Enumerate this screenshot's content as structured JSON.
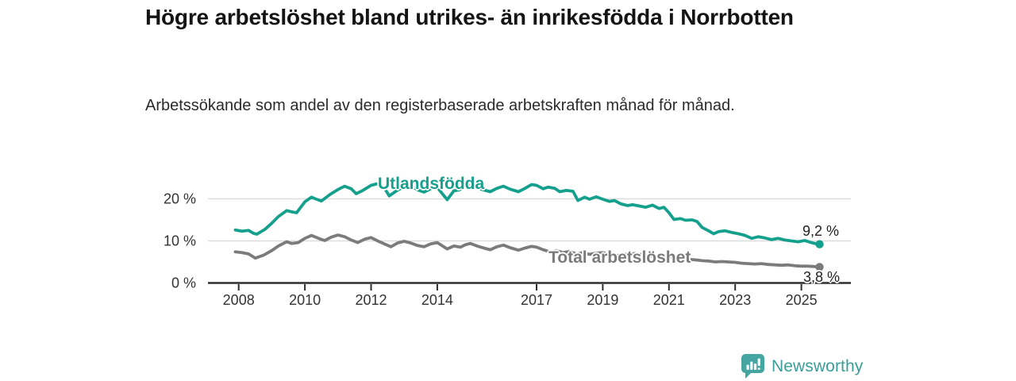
{
  "header": {
    "title": "Högre arbetslöshet bland utrikes- än inrikesfödda i Norrbotten",
    "subtitle": "Arbetssökande som andel av den registerbaserade arbetskraften månad för månad."
  },
  "colors": {
    "accent_teal": "#15a08e",
    "series_gray": "#7b7b7b",
    "gridline": "#dcdcdc",
    "axis": "#2e2e2e",
    "tick_text": "#333333",
    "logo_teal": "#45a5a0",
    "logo_text_teal": "#3a9e98"
  },
  "logo": {
    "text": "Newsworthy",
    "icon": "bar-chart-speech-bubble"
  },
  "chart_data": {
    "type": "line",
    "title": "Högre arbetslöshet bland utrikes- än inrikesfödda i Norrbotten",
    "subtitle": "Arbetssökande som andel av den registerbaserade arbetskraften månad för månad.",
    "xlabel": "",
    "ylabel": "",
    "grid": "horizontal",
    "legend_position": "inline-labels",
    "xlim": [
      2007.9,
      2025.8
    ],
    "ylim": [
      0,
      26
    ],
    "x_ticks": [
      {
        "value": 2008,
        "label": "2008"
      },
      {
        "value": 2010,
        "label": "2010"
      },
      {
        "value": 2012,
        "label": "2012"
      },
      {
        "value": 2014,
        "label": "2014"
      },
      {
        "value": 2017,
        "label": "2017"
      },
      {
        "value": 2019,
        "label": "2019"
      },
      {
        "value": 2021,
        "label": "2021"
      },
      {
        "value": 2023,
        "label": "2023"
      },
      {
        "value": 2025,
        "label": "2025"
      }
    ],
    "y_ticks": [
      {
        "value": 0,
        "label": "0 %"
      },
      {
        "value": 10,
        "label": "10 %"
      },
      {
        "value": 20,
        "label": "20 %"
      }
    ],
    "series": [
      {
        "name": "Utlandsfödda",
        "color": "#15a08e",
        "end_label": "9,2 %",
        "end_value": 9.2,
        "points": [
          [
            2007.9,
            12.6
          ],
          [
            2008.1,
            12.3
          ],
          [
            2008.3,
            12.5
          ],
          [
            2008.45,
            11.8
          ],
          [
            2008.55,
            11.6
          ],
          [
            2008.8,
            12.8
          ],
          [
            2009.0,
            14.2
          ],
          [
            2009.2,
            15.8
          ],
          [
            2009.45,
            17.2
          ],
          [
            2009.6,
            16.9
          ],
          [
            2009.75,
            16.7
          ],
          [
            2010.0,
            19.3
          ],
          [
            2010.2,
            20.4
          ],
          [
            2010.35,
            19.9
          ],
          [
            2010.5,
            19.5
          ],
          [
            2010.75,
            21.0
          ],
          [
            2011.0,
            22.2
          ],
          [
            2011.2,
            23.0
          ],
          [
            2011.4,
            22.4
          ],
          [
            2011.55,
            21.2
          ],
          [
            2011.75,
            22.0
          ],
          [
            2012.0,
            23.2
          ],
          [
            2012.2,
            23.6
          ],
          [
            2012.4,
            22.6
          ],
          [
            2012.55,
            20.7
          ],
          [
            2012.8,
            22.1
          ],
          [
            2013.0,
            22.8
          ],
          [
            2013.2,
            23.1
          ],
          [
            2013.45,
            22.0
          ],
          [
            2013.6,
            21.6
          ],
          [
            2013.8,
            22.4
          ],
          [
            2014.0,
            22.7
          ],
          [
            2014.3,
            19.8
          ],
          [
            2014.5,
            21.9
          ],
          [
            2014.65,
            22.1
          ],
          [
            2014.85,
            22.9
          ],
          [
            2015.0,
            23.2
          ],
          [
            2015.2,
            22.6
          ],
          [
            2015.45,
            22.0
          ],
          [
            2015.6,
            21.7
          ],
          [
            2015.8,
            22.5
          ],
          [
            2016.0,
            23.0
          ],
          [
            2016.2,
            22.3
          ],
          [
            2016.45,
            21.7
          ],
          [
            2016.65,
            22.5
          ],
          [
            2016.85,
            23.4
          ],
          [
            2017.0,
            23.2
          ],
          [
            2017.2,
            22.4
          ],
          [
            2017.35,
            22.8
          ],
          [
            2017.55,
            22.5
          ],
          [
            2017.7,
            21.7
          ],
          [
            2017.9,
            22.0
          ],
          [
            2018.1,
            21.8
          ],
          [
            2018.25,
            19.6
          ],
          [
            2018.45,
            20.4
          ],
          [
            2018.6,
            19.9
          ],
          [
            2018.8,
            20.5
          ],
          [
            2019.0,
            19.9
          ],
          [
            2019.2,
            19.4
          ],
          [
            2019.35,
            19.6
          ],
          [
            2019.55,
            18.8
          ],
          [
            2019.75,
            18.4
          ],
          [
            2019.9,
            18.6
          ],
          [
            2020.1,
            18.3
          ],
          [
            2020.3,
            18.0
          ],
          [
            2020.5,
            18.5
          ],
          [
            2020.7,
            17.7
          ],
          [
            2020.85,
            18.0
          ],
          [
            2021.0,
            16.7
          ],
          [
            2021.15,
            15.1
          ],
          [
            2021.35,
            15.3
          ],
          [
            2021.5,
            14.9
          ],
          [
            2021.7,
            15.0
          ],
          [
            2021.85,
            14.6
          ],
          [
            2022.0,
            13.2
          ],
          [
            2022.2,
            12.4
          ],
          [
            2022.35,
            11.7
          ],
          [
            2022.5,
            12.2
          ],
          [
            2022.7,
            12.4
          ],
          [
            2022.9,
            12.0
          ],
          [
            2023.1,
            11.7
          ],
          [
            2023.3,
            11.3
          ],
          [
            2023.5,
            10.6
          ],
          [
            2023.7,
            11.0
          ],
          [
            2023.9,
            10.7
          ],
          [
            2024.1,
            10.3
          ],
          [
            2024.3,
            10.6
          ],
          [
            2024.5,
            10.2
          ],
          [
            2024.7,
            10.0
          ],
          [
            2024.9,
            9.8
          ],
          [
            2025.1,
            10.1
          ],
          [
            2025.3,
            9.6
          ],
          [
            2025.45,
            9.3
          ],
          [
            2025.55,
            9.2
          ]
        ]
      },
      {
        "name": "Total arbetslöshet",
        "color": "#7b7b7b",
        "end_label": "3,8 %",
        "end_value": 3.8,
        "points": [
          [
            2007.9,
            7.4
          ],
          [
            2008.1,
            7.2
          ],
          [
            2008.3,
            6.9
          ],
          [
            2008.5,
            5.9
          ],
          [
            2008.75,
            6.6
          ],
          [
            2009.0,
            7.7
          ],
          [
            2009.2,
            8.8
          ],
          [
            2009.45,
            9.8
          ],
          [
            2009.6,
            9.4
          ],
          [
            2009.8,
            9.6
          ],
          [
            2010.0,
            10.6
          ],
          [
            2010.2,
            11.3
          ],
          [
            2010.45,
            10.5
          ],
          [
            2010.6,
            10.1
          ],
          [
            2010.8,
            10.9
          ],
          [
            2011.0,
            11.4
          ],
          [
            2011.2,
            11.0
          ],
          [
            2011.4,
            10.2
          ],
          [
            2011.6,
            9.6
          ],
          [
            2011.8,
            10.4
          ],
          [
            2012.0,
            10.8
          ],
          [
            2012.2,
            10.0
          ],
          [
            2012.4,
            9.3
          ],
          [
            2012.6,
            8.6
          ],
          [
            2012.8,
            9.5
          ],
          [
            2013.0,
            9.9
          ],
          [
            2013.2,
            9.5
          ],
          [
            2013.4,
            8.9
          ],
          [
            2013.6,
            8.6
          ],
          [
            2013.8,
            9.3
          ],
          [
            2014.0,
            9.6
          ],
          [
            2014.3,
            8.1
          ],
          [
            2014.5,
            8.8
          ],
          [
            2014.7,
            8.5
          ],
          [
            2014.85,
            9.1
          ],
          [
            2015.0,
            9.4
          ],
          [
            2015.2,
            8.8
          ],
          [
            2015.45,
            8.2
          ],
          [
            2015.6,
            7.9
          ],
          [
            2015.8,
            8.6
          ],
          [
            2016.0,
            9.0
          ],
          [
            2016.2,
            8.4
          ],
          [
            2016.45,
            7.8
          ],
          [
            2016.65,
            8.3
          ],
          [
            2016.85,
            8.7
          ],
          [
            2017.0,
            8.5
          ],
          [
            2017.2,
            7.9
          ],
          [
            2017.4,
            7.4
          ],
          [
            2017.6,
            7.7
          ],
          [
            2017.8,
            7.2
          ],
          [
            2018.0,
            7.5
          ],
          [
            2018.2,
            6.9
          ],
          [
            2018.4,
            7.2
          ],
          [
            2018.6,
            6.8
          ],
          [
            2018.8,
            7.1
          ],
          [
            2019.0,
            7.2
          ],
          [
            2019.2,
            6.8
          ],
          [
            2019.4,
            6.5
          ],
          [
            2019.6,
            6.7
          ],
          [
            2019.8,
            6.9
          ],
          [
            2020.0,
            7.0
          ],
          [
            2020.2,
            6.7
          ],
          [
            2020.4,
            6.5
          ],
          [
            2020.6,
            6.3
          ],
          [
            2020.8,
            6.4
          ],
          [
            2021.0,
            6.2
          ],
          [
            2021.2,
            5.9
          ],
          [
            2021.4,
            5.7
          ],
          [
            2021.6,
            5.6
          ],
          [
            2021.8,
            5.5
          ],
          [
            2022.0,
            5.3
          ],
          [
            2022.2,
            5.2
          ],
          [
            2022.4,
            5.0
          ],
          [
            2022.6,
            5.1
          ],
          [
            2022.8,
            5.0
          ],
          [
            2023.0,
            4.9
          ],
          [
            2023.2,
            4.7
          ],
          [
            2023.4,
            4.6
          ],
          [
            2023.6,
            4.5
          ],
          [
            2023.8,
            4.6
          ],
          [
            2024.0,
            4.4
          ],
          [
            2024.2,
            4.3
          ],
          [
            2024.4,
            4.2
          ],
          [
            2024.6,
            4.3
          ],
          [
            2024.8,
            4.1
          ],
          [
            2025.0,
            4.0
          ],
          [
            2025.2,
            4.0
          ],
          [
            2025.4,
            3.9
          ],
          [
            2025.55,
            3.8
          ]
        ]
      }
    ]
  }
}
